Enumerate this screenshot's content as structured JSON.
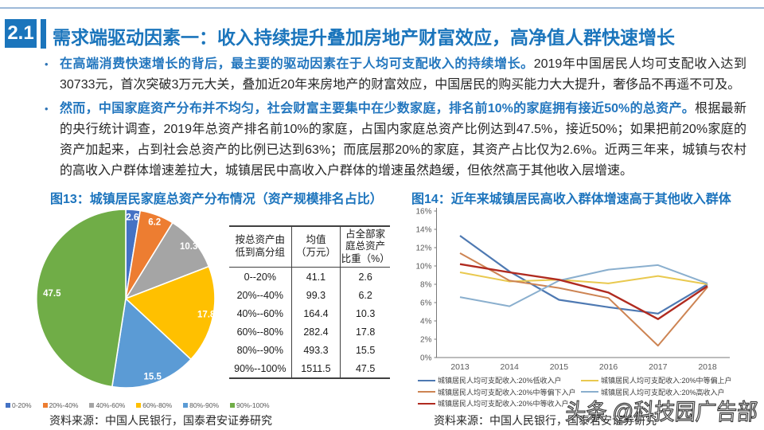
{
  "header": {
    "section_number": "2.1",
    "title": "需求端驱动因素一：收入持续提升叠加房地产财富效应，高净值人群快速增长"
  },
  "bullets": [
    {
      "highlight": "在高端消费快速增长的背后，最主要的驱动因素在于人均可支配收入的持续增长。",
      "text": "2019年中国居民人均可支配收入达到30733元，首次突破3万元大关，叠加近20年来房地产的财富效应，中国居民的购买能力大大提升，奢侈品不再遥不可及。"
    },
    {
      "highlight": "然而，中国家庭资产分布并不均匀，社会财富主要集中在少数家庭，排名前10%的家庭拥有接近50%的总资产。",
      "text": "根据最新的央行统计调查，2019年总资产排名前10%的家庭，占国内家庭总资产比例达到47.5%，接近50%；如果把前20%家庭的资产加起来，占到社会总资产的比例已达到63%；而底层那20%的家庭，其资产占比仅为2.6%。近两三年来，城镇与农村的高收入户群体增速差拉大，城镇居民中高收入户群体的增速虽然趋缓，但依然高于其他收入层增速。"
    }
  ],
  "figure13": {
    "title": "图13：城镇居民家庭总资产分布情况（资产规模排名占比）",
    "table": {
      "headers": [
        "按总资产由\n低到高分组",
        "均值\n（万元）",
        "占全部家\n庭总资产\n比重（%）"
      ],
      "rows": [
        [
          "0--20%",
          "41.1",
          "2.6"
        ],
        [
          "20%--40%",
          "99.3",
          "6.2"
        ],
        [
          "40%--60%",
          "164.4",
          "10.3"
        ],
        [
          "60%--80%",
          "282.4",
          "17.8"
        ],
        [
          "80%--90%",
          "493.3",
          "15.5"
        ],
        [
          "90%--100%",
          "1511.5",
          "47.5"
        ]
      ]
    },
    "source": "资料来源：中国人民银行，国泰君安证券研究"
  },
  "figure14": {
    "title": "图14：近年来城镇居民高收入群体增速高于其他收入群体",
    "source": "资料来源：中国人民银行，国泰君安证券研究"
  },
  "watermark": "头条 @科技园广告部",
  "chart_data": [
    {
      "type": "pie",
      "title": "图13：城镇居民家庭总资产分布情况（资产规模排名占比）",
      "labels": [
        "0-20%",
        "20%-40%",
        "40%-60%",
        "60%-80%",
        "80%-90%",
        "90%-100%"
      ],
      "values": [
        2.6,
        6.2,
        10.3,
        17.8,
        15.5,
        47.5
      ],
      "colors": [
        "#4472C4",
        "#ED7D31",
        "#A5A5A5",
        "#FFC000",
        "#5B9BD5",
        "#70AD47"
      ],
      "start_angle": "12-oclock",
      "direction": "clockwise",
      "data_labels": true
    },
    {
      "type": "line",
      "title": "图14：近年来城镇居民高收入群体增速高于其他收入群体",
      "x": [
        "2013",
        "2014",
        "2015",
        "2016",
        "2017",
        "2018"
      ],
      "ylim": [
        0,
        16
      ],
      "ytick_step": 2,
      "ytick_format": "percent",
      "grid": false,
      "legend_position": "bottom",
      "series": [
        {
          "name": "城镇居民人均可支配收入:20%低收入户",
          "color": "#4E79B2",
          "width": 2.2,
          "values": [
            13.3,
            9.4,
            6.3,
            5.5,
            4.8,
            8.0
          ]
        },
        {
          "name": "城镇居民人均可支配收入:20%中等偏上户",
          "color": "#E9C94F",
          "width": 2,
          "values": [
            9.3,
            8.3,
            8.5,
            8.1,
            8.9,
            8.0
          ]
        },
        {
          "name": "城镇居民人均可支配收入:20%中等偏下入户",
          "color": "#CD8453",
          "width": 2,
          "values": [
            11.4,
            8.4,
            7.6,
            6.5,
            1.3,
            7.7
          ]
        },
        {
          "name": "城镇居民人均可支配收入:20%高收入户",
          "color": "#8AAFCE",
          "width": 2,
          "values": [
            6.6,
            5.6,
            8.4,
            9.6,
            10.1,
            8.1
          ]
        },
        {
          "name": "城镇居民人均可支配收入:20%中等收入户",
          "color": "#B02B20",
          "width": 2.4,
          "values": [
            10.2,
            9.3,
            8.5,
            7.1,
            4.2,
            7.8
          ]
        }
      ]
    }
  ]
}
